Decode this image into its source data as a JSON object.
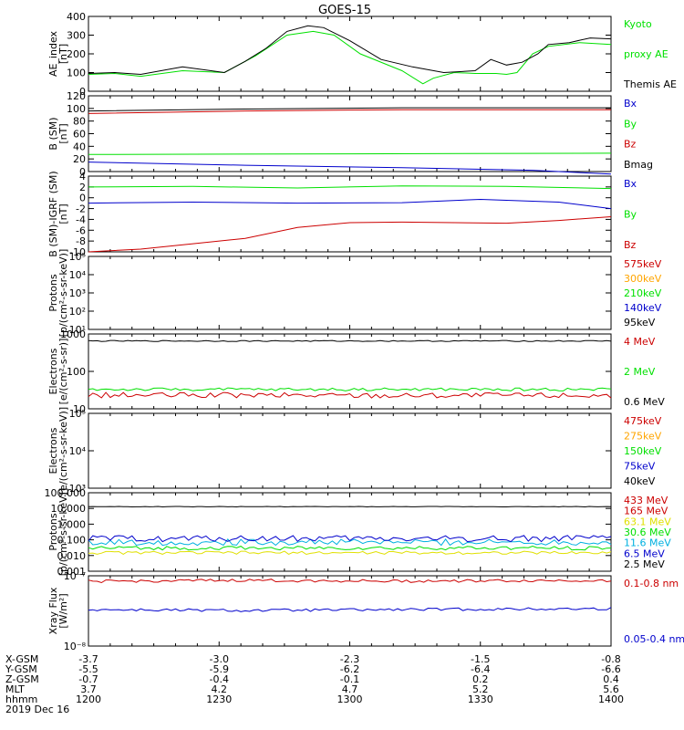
{
  "title": "GOES-15",
  "colors": {
    "black": "#000000",
    "green": "#00e000",
    "red": "#cc0000",
    "blue": "#0000cc",
    "orange": "#ffa500",
    "yellow": "#e0e000",
    "cyan": "#00b0e0",
    "purple": "#9900bb"
  },
  "chart_data": [
    {
      "type": "line",
      "ylabel": "AE_index\n[nT]",
      "ylim": [
        0,
        400
      ],
      "yticks": [
        "0",
        "100",
        "200",
        "300",
        "400"
      ],
      "series": [
        {
          "name": "Kyoto\nproxy AE",
          "color": "green",
          "x": [
            0,
            0.05,
            0.1,
            0.18,
            0.26,
            0.32,
            0.38,
            0.43,
            0.47,
            0.52,
            0.6,
            0.64,
            0.66,
            0.7,
            0.74,
            0.78,
            0.8,
            0.82,
            0.85,
            0.88,
            0.94,
            1.0
          ],
          "y": [
            90,
            95,
            80,
            110,
            100,
            190,
            300,
            320,
            300,
            200,
            110,
            40,
            70,
            100,
            95,
            95,
            90,
            100,
            200,
            240,
            260,
            250
          ]
        },
        {
          "name": "Themis AE",
          "color": "black",
          "x": [
            0,
            0.05,
            0.1,
            0.18,
            0.26,
            0.3,
            0.34,
            0.38,
            0.42,
            0.45,
            0.5,
            0.56,
            0.62,
            0.68,
            0.74,
            0.77,
            0.8,
            0.83,
            0.86,
            0.88,
            0.92,
            0.96,
            1.0
          ],
          "y": [
            95,
            100,
            90,
            130,
            100,
            160,
            230,
            320,
            350,
            340,
            270,
            170,
            130,
            100,
            110,
            170,
            140,
            155,
            200,
            250,
            260,
            285,
            280
          ]
        }
      ]
    },
    {
      "type": "line",
      "ylabel": "B (SM)\n[nT]",
      "ylim": [
        0,
        120
      ],
      "yticks": [
        "0",
        "20",
        "40",
        "60",
        "80",
        "100",
        "120"
      ],
      "series": [
        {
          "name": "Bx",
          "color": "blue",
          "x": [
            0,
            0.3,
            0.6,
            0.85,
            1.0
          ],
          "y": [
            15,
            10,
            6,
            2,
            -4
          ]
        },
        {
          "name": "By",
          "color": "green",
          "x": [
            0,
            0.5,
            1.0
          ],
          "y": [
            27,
            28,
            29
          ]
        },
        {
          "name": "Bz",
          "color": "red",
          "x": [
            0,
            0.3,
            0.6,
            1.0
          ],
          "y": [
            92,
            96,
            98,
            98
          ]
        },
        {
          "name": "Bmag",
          "color": "black",
          "x": [
            0,
            0.3,
            0.6,
            1.0
          ],
          "y": [
            96,
            99,
            101,
            101
          ]
        }
      ]
    },
    {
      "type": "line",
      "ylabel": "B (SM)-IGRF (SM)\n[nT]",
      "ylim": [
        -10,
        4
      ],
      "yticks": [
        "-10",
        "-8",
        "-6",
        "-4",
        "-2",
        "0",
        "2",
        "4"
      ],
      "series": [
        {
          "name": "Bx",
          "color": "blue",
          "x": [
            0,
            0.2,
            0.4,
            0.6,
            0.75,
            0.9,
            1.0
          ],
          "y": [
            -1,
            -0.8,
            -1,
            -0.9,
            -0.3,
            -0.8,
            -2
          ]
        },
        {
          "name": "By",
          "color": "green",
          "x": [
            0,
            0.2,
            0.4,
            0.6,
            0.8,
            1.0
          ],
          "y": [
            2,
            2.1,
            1.8,
            2.2,
            2.1,
            1.7
          ]
        },
        {
          "name": "Bz",
          "color": "red",
          "x": [
            0,
            0.1,
            0.2,
            0.3,
            0.4,
            0.5,
            0.6,
            0.7,
            0.8,
            0.9,
            1.0
          ],
          "y": [
            -10,
            -9.5,
            -8.5,
            -7.5,
            -5.5,
            -4.6,
            -4.5,
            -4.6,
            -4.7,
            -4.2,
            -3.5
          ]
        }
      ]
    },
    {
      "type": "line",
      "ylabel": "Protons\n[p/(cm²-s-sr-keV)]",
      "log": true,
      "ylim": [
        10,
        100000
      ],
      "yticks": [
        "10¹",
        "10²",
        "10³",
        "10⁴",
        "10⁵"
      ],
      "series": [
        {
          "name": "575keV",
          "color": "red",
          "x": [],
          "y": []
        },
        {
          "name": "300keV",
          "color": "orange",
          "x": [],
          "y": []
        },
        {
          "name": "210keV",
          "color": "green",
          "x": [],
          "y": []
        },
        {
          "name": "140keV",
          "color": "blue",
          "x": [],
          "y": []
        },
        {
          "name": "95keV",
          "color": "black",
          "x": [],
          "y": []
        }
      ]
    },
    {
      "type": "line",
      "ylabel": "Electrons\n[e/(cm²-s-sr)]",
      "log": true,
      "ylim": [
        10,
        1000
      ],
      "yticks": [
        "10",
        "100",
        "1000"
      ],
      "series": [
        {
          "name": "4 MeV",
          "color": "red",
          "x": [
            0,
            1
          ],
          "y": [
            23,
            23
          ],
          "noise": 0.15
        },
        {
          "name": "2 MeV",
          "color": "green",
          "x": [
            0,
            1
          ],
          "y": [
            33,
            33
          ],
          "noise": 0.08
        },
        {
          "name": "0.6 MeV",
          "color": "black",
          "x": [
            0,
            1
          ],
          "y": [
            650,
            650
          ],
          "noise": 0.03
        }
      ]
    },
    {
      "type": "line",
      "ylabel": "Electrons\n[e/(cm²-s-sr-keV)]",
      "log": true,
      "ylim": [
        1000,
        100000
      ],
      "yticks": [
        "10³",
        "10⁴",
        "10⁵"
      ],
      "series": [
        {
          "name": "475keV",
          "color": "red",
          "x": [],
          "y": []
        },
        {
          "name": "275keV",
          "color": "orange",
          "x": [],
          "y": []
        },
        {
          "name": "150keV",
          "color": "green",
          "x": [],
          "y": []
        },
        {
          "name": "75keV",
          "color": "blue",
          "x": [],
          "y": []
        },
        {
          "name": "40keV",
          "color": "black",
          "x": [],
          "y": []
        }
      ]
    },
    {
      "type": "line",
      "ylabel": "Protons\n[p/(cm²-s-sr-keV)]",
      "log": true,
      "ylim": [
        0.001,
        100
      ],
      "yticks": [
        "0.001",
        "0.010",
        "0.100",
        "1.000",
        "10.000",
        "100.000"
      ],
      "series": [
        {
          "name": "433 MeV",
          "color": "red",
          "x": [],
          "y": []
        },
        {
          "name": "165 MeV",
          "color": "red",
          "x": [],
          "y": []
        },
        {
          "name": "63.1 MeV",
          "color": "yellow",
          "x": [
            0,
            1
          ],
          "y": [
            0.015,
            0.015
          ],
          "noise": 0.2
        },
        {
          "name": "30.6 MeV",
          "color": "green",
          "x": [
            0,
            1
          ],
          "y": [
            0.03,
            0.03
          ],
          "noise": 0.25
        },
        {
          "name": "11.6 MeV",
          "color": "cyan",
          "x": [
            0,
            1
          ],
          "y": [
            0.07,
            0.07
          ],
          "noise": 0.4
        },
        {
          "name": "6.5 MeV",
          "color": "blue",
          "x": [
            0,
            1
          ],
          "y": [
            0.12,
            0.12
          ],
          "noise": 0.4
        },
        {
          "name": "2.5 MeV",
          "color": "black",
          "x": [
            0,
            1
          ],
          "y": [
            13,
            13
          ],
          "noise": 0.03
        }
      ]
    },
    {
      "type": "line",
      "ylabel": "Xray Flux\n[W/m²]",
      "log": true,
      "ylim": [
        1e-08,
        1e-07
      ],
      "yticks": [
        "10⁻⁸",
        "10⁻⁷"
      ],
      "series": [
        {
          "name": "0.1-0.8 nm",
          "color": "red",
          "x": [
            0,
            0.3,
            0.6,
            1.0
          ],
          "y": [
            8.3e-08,
            8.6e-08,
            8.4e-08,
            8.6e-08
          ],
          "noise": 0.04
        },
        {
          "name": "0.05-0.4 nm",
          "color": "blue",
          "x": [
            0,
            0.3,
            0.6,
            1.0
          ],
          "y": [
            3.3e-08,
            3.2e-08,
            3.3e-08,
            3.4e-08
          ],
          "noise": 0.04
        }
      ]
    }
  ],
  "ephemeris": {
    "rows": [
      {
        "label": "X-GSM",
        "values": [
          "-3.7",
          "-3.0",
          "-2.3",
          "-1.5",
          "-0.8"
        ]
      },
      {
        "label": "Y-GSM",
        "values": [
          "-5.5",
          "-5.9",
          "-6.2",
          "-6.4",
          "-6.6"
        ]
      },
      {
        "label": "Z-GSM",
        "values": [
          "-0.7",
          "-0.4",
          "-0.1",
          "0.2",
          "0.4"
        ]
      },
      {
        "label": "MLT",
        "values": [
          "3.7",
          "4.2",
          "4.7",
          "5.2",
          "5.6"
        ]
      },
      {
        "label": "hhmm",
        "values": [
          "1200",
          "1230",
          "1300",
          "1330",
          "1400"
        ]
      }
    ],
    "date": "2019 Dec 16"
  }
}
